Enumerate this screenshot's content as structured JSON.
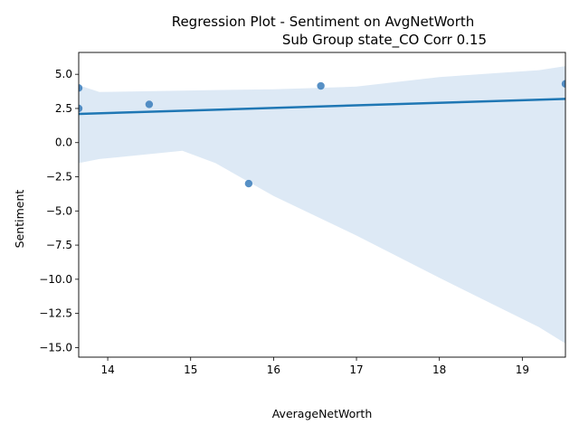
{
  "chart_data": {
    "type": "scatter",
    "title_line1": "Regression Plot - Sentiment on AvgNetWorth",
    "title_line2": "Sub Group state_CO Corr 0.15",
    "xlabel": "AverageNetWorth",
    "ylabel": "Sentiment",
    "xlim": [
      13.65,
      19.52
    ],
    "ylim": [
      -15.7,
      6.6
    ],
    "xticks": [
      14,
      15,
      16,
      17,
      18,
      19
    ],
    "xtick_labels": [
      "14",
      "15",
      "16",
      "17",
      "18",
      "19"
    ],
    "yticks": [
      5.0,
      2.5,
      0.0,
      -2.5,
      -5.0,
      -7.5,
      -10.0,
      -12.5,
      -15.0
    ],
    "ytick_labels": [
      "5.0",
      "2.5",
      "0.0",
      "−2.5",
      "−5.0",
      "−7.5",
      "−10.0",
      "−12.5",
      "−15.0"
    ],
    "points": [
      {
        "x": 13.65,
        "y": 4.0
      },
      {
        "x": 13.65,
        "y": 2.5
      },
      {
        "x": 14.5,
        "y": 2.8
      },
      {
        "x": 15.7,
        "y": -3.0
      },
      {
        "x": 16.57,
        "y": 4.15
      },
      {
        "x": 19.52,
        "y": 4.3
      }
    ],
    "regression_line": {
      "x": [
        13.65,
        19.52
      ],
      "y": [
        2.1,
        3.2
      ]
    },
    "confidence_band": {
      "x": [
        13.65,
        13.9,
        14.9,
        15.3,
        16.0,
        17.0,
        18.0,
        19.2,
        19.52
      ],
      "upper": [
        4.2,
        3.7,
        3.8,
        3.85,
        3.9,
        4.1,
        4.8,
        5.3,
        5.6
      ],
      "lower": [
        -1.5,
        -1.2,
        -0.6,
        -1.5,
        -3.9,
        -6.8,
        -9.9,
        -13.5,
        -14.7
      ]
    },
    "colors": {
      "point": "#3a7dbb",
      "line": "#1f77b4",
      "band": "#c6dbef"
    },
    "grid": false
  }
}
